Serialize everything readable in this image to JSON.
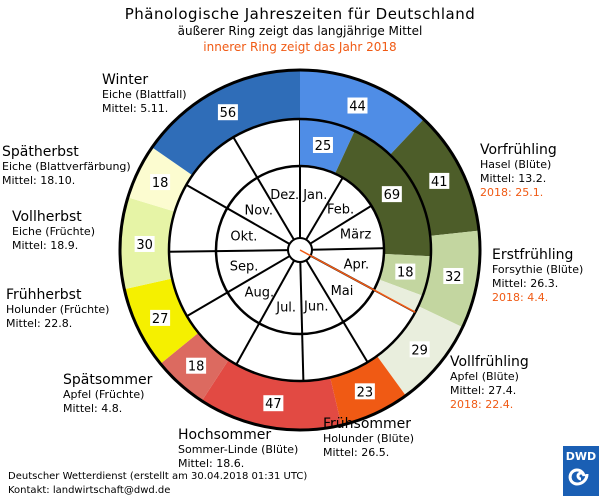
{
  "header": {
    "title": "Phänologische Jahreszeiten für Deutschland",
    "subtitle_outer": "äußerer Ring zeigt das langjährige Mittel",
    "subtitle_inner": "innerer Ring zeigt das Jahr 2018"
  },
  "chart_data": {
    "type": "ring",
    "months": [
      "Jan.",
      "Feb.",
      "März",
      "Apr.",
      "Mai",
      "Jun.",
      "Jul.",
      "Aug.",
      "Sep.",
      "Okt.",
      "Nov.",
      "Dez."
    ],
    "outer_ring": [
      {
        "season": "Winter",
        "days": 44,
        "color": "#4f8de6"
      },
      {
        "season": "Vorfrühling",
        "days": 41,
        "color": "#4d5d29"
      },
      {
        "season": "Erstfrühling",
        "days": 32,
        "color": "#c3d6a0"
      },
      {
        "season": "Vollfrühling",
        "days": 29,
        "color": "#e9eedd"
      },
      {
        "season": "Frühsommer",
        "days": 23,
        "color": "#f05a14"
      },
      {
        "season": "Hochsommer",
        "days": 47,
        "color": "#e24a43"
      },
      {
        "season": "Spätsommer",
        "days": 18,
        "color": "#dc6a60"
      },
      {
        "season": "Frühherbst",
        "days": 27,
        "color": "#f5f000"
      },
      {
        "season": "Vollherbst",
        "days": 30,
        "color": "#e6f4a6"
      },
      {
        "season": "Spätherbst",
        "days": 18,
        "color": "#fcfcd0"
      },
      {
        "season": "Winter",
        "days": 56,
        "color": "#2f6db8"
      }
    ],
    "inner_ring": [
      {
        "season": "Winter",
        "days": 25,
        "color": "#4f8de6",
        "label": "25"
      },
      {
        "season": "Vorfrühling",
        "days": 69,
        "color": "#4d5d29",
        "label": "69"
      },
      {
        "season": "Erstfrühling",
        "days": 18,
        "color": "#c3d6a0",
        "label": "18"
      },
      {
        "season": "Vollfrühling",
        "days": 8,
        "color": "#e9eedd",
        "label": ""
      }
    ],
    "current_marker_color": "#f05a14"
  },
  "labels": {
    "winter": {
      "name": "Winter",
      "plant": "Eiche (Blattfall)",
      "mean": "Mittel: 5.11."
    },
    "spaetherbst": {
      "name": "Spätherbst",
      "plant": "Eiche (Blattverfärbung)",
      "mean": "Mittel: 18.10."
    },
    "vollherbst": {
      "name": "Vollherbst",
      "plant": "Eiche (Früchte)",
      "mean": "Mittel: 18.9."
    },
    "fruehherbst": {
      "name": "Frühherbst",
      "plant": "Holunder (Früchte)",
      "mean": "Mittel: 22.8."
    },
    "spaetsommer": {
      "name": "Spätsommer",
      "plant": "Apfel (Früchte)",
      "mean": "Mittel: 4.8."
    },
    "hochsommer": {
      "name": "Hochsommer",
      "plant": "Sommer-Linde (Blüte)",
      "mean": "Mittel: 18.6."
    },
    "fruehsommer": {
      "name": "Frühsommer",
      "plant": "Holunder (Blüte)",
      "mean": "Mittel: 26.5."
    },
    "vollfruehling": {
      "name": "Vollfrühling",
      "plant": "Apfel (Blüte)",
      "mean": "Mittel: 27.4.",
      "year": "2018: 22.4."
    },
    "erstfruehling": {
      "name": "Erstfrühling",
      "plant": "Forsythie (Blüte)",
      "mean": "Mittel: 26.3.",
      "year": "2018: 4.4."
    },
    "vorfruehling": {
      "name": "Vorfrühling",
      "plant": "Hasel (Blüte)",
      "mean": "Mittel: 13.2.",
      "year": "2018: 25.1."
    }
  },
  "footer": {
    "line1": "Deutscher Wetterdienst (erstellt am 30.04.2018 01:31 UTC)",
    "line2": "Kontakt: landwirtschaft@dwd.de"
  },
  "logo": {
    "text": "DWD",
    "color": "#1a5fb4"
  }
}
